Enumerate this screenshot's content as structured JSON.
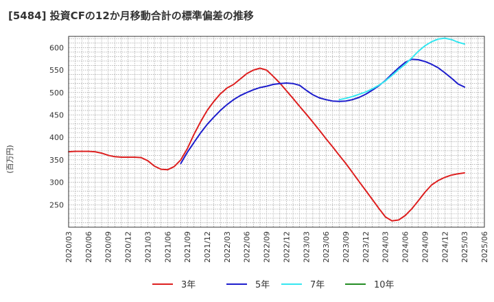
{
  "title": "[5484]  投資CFの12か月移動合計の標準偏差の推移",
  "chart_data": {
    "type": "line",
    "title": "[5484]  投資CFの12か月移動合計の標準偏差の推移",
    "xlabel": "",
    "ylabel": "(百万円)",
    "ylim": [
      200,
      625
    ],
    "yticks": [
      250,
      300,
      350,
      400,
      450,
      500,
      550,
      600
    ],
    "x_range": [
      "2020-03",
      "2025-06"
    ],
    "xticks": [
      "2020/03",
      "2020/06",
      "2020/09",
      "2020/12",
      "2021/03",
      "2021/06",
      "2021/09",
      "2021/12",
      "2022/03",
      "2022/06",
      "2022/09",
      "2022/12",
      "2023/03",
      "2023/06",
      "2023/09",
      "2023/12",
      "2024/03",
      "2024/06",
      "2024/09",
      "2024/12",
      "2025/03",
      "2025/06"
    ],
    "grid": true,
    "legend_position": "bottom",
    "series": [
      {
        "name": "3年",
        "color": "#dd1e1e",
        "points": [
          [
            "2020-03",
            368
          ],
          [
            "2020-04",
            369
          ],
          [
            "2020-05",
            369
          ],
          [
            "2020-06",
            369
          ],
          [
            "2020-07",
            368
          ],
          [
            "2020-08",
            365
          ],
          [
            "2020-09",
            360
          ],
          [
            "2020-10",
            357
          ],
          [
            "2020-11",
            356
          ],
          [
            "2020-12",
            356
          ],
          [
            "2021-01",
            356
          ],
          [
            "2021-02",
            355
          ],
          [
            "2021-03",
            348
          ],
          [
            "2021-04",
            336
          ],
          [
            "2021-05",
            329
          ],
          [
            "2021-06",
            328
          ],
          [
            "2021-07",
            335
          ],
          [
            "2021-08",
            350
          ],
          [
            "2021-09",
            375
          ],
          [
            "2021-10",
            407
          ],
          [
            "2021-11",
            435
          ],
          [
            "2021-12",
            460
          ],
          [
            "2022-01",
            480
          ],
          [
            "2022-02",
            497
          ],
          [
            "2022-03",
            510
          ],
          [
            "2022-04",
            518
          ],
          [
            "2022-05",
            530
          ],
          [
            "2022-06",
            542
          ],
          [
            "2022-07",
            550
          ],
          [
            "2022-08",
            554
          ],
          [
            "2022-09",
            550
          ],
          [
            "2022-10",
            536
          ],
          [
            "2022-11",
            521
          ],
          [
            "2022-12",
            504
          ],
          [
            "2023-01",
            487
          ],
          [
            "2023-02",
            469
          ],
          [
            "2023-03",
            452
          ],
          [
            "2023-04",
            434
          ],
          [
            "2023-05",
            416
          ],
          [
            "2023-06",
            397
          ],
          [
            "2023-07",
            379
          ],
          [
            "2023-08",
            360
          ],
          [
            "2023-09",
            342
          ],
          [
            "2023-10",
            322
          ],
          [
            "2023-11",
            302
          ],
          [
            "2023-12",
            282
          ],
          [
            "2024-01",
            262
          ],
          [
            "2024-02",
            242
          ],
          [
            "2024-03",
            223
          ],
          [
            "2024-04",
            214
          ],
          [
            "2024-05",
            216
          ],
          [
            "2024-06",
            226
          ],
          [
            "2024-07",
            241
          ],
          [
            "2024-08",
            259
          ],
          [
            "2024-09",
            278
          ],
          [
            "2024-10",
            294
          ],
          [
            "2024-11",
            304
          ],
          [
            "2024-12",
            311
          ],
          [
            "2025-01",
            316
          ],
          [
            "2025-02",
            319
          ],
          [
            "2025-03",
            321
          ]
        ]
      },
      {
        "name": "5年",
        "color": "#1c1ccc",
        "points": [
          [
            "2021-08",
            342
          ],
          [
            "2021-09",
            367
          ],
          [
            "2021-10",
            389
          ],
          [
            "2021-11",
            410
          ],
          [
            "2021-12",
            429
          ],
          [
            "2022-01",
            445
          ],
          [
            "2022-02",
            460
          ],
          [
            "2022-03",
            473
          ],
          [
            "2022-04",
            484
          ],
          [
            "2022-05",
            493
          ],
          [
            "2022-06",
            500
          ],
          [
            "2022-07",
            506
          ],
          [
            "2022-08",
            511
          ],
          [
            "2022-09",
            514
          ],
          [
            "2022-10",
            518
          ],
          [
            "2022-11",
            520
          ],
          [
            "2022-12",
            521
          ],
          [
            "2023-01",
            520
          ],
          [
            "2023-02",
            516
          ],
          [
            "2023-03",
            505
          ],
          [
            "2023-04",
            495
          ],
          [
            "2023-05",
            488
          ],
          [
            "2023-06",
            484
          ],
          [
            "2023-07",
            481
          ],
          [
            "2023-08",
            480
          ],
          [
            "2023-09",
            481
          ],
          [
            "2023-10",
            484
          ],
          [
            "2023-11",
            489
          ],
          [
            "2023-12",
            496
          ],
          [
            "2024-01",
            505
          ],
          [
            "2024-02",
            515
          ],
          [
            "2024-03",
            527
          ],
          [
            "2024-04",
            541
          ],
          [
            "2024-05",
            555
          ],
          [
            "2024-06",
            567
          ],
          [
            "2024-07",
            574
          ],
          [
            "2024-08",
            573
          ],
          [
            "2024-09",
            569
          ],
          [
            "2024-10",
            563
          ],
          [
            "2024-11",
            555
          ],
          [
            "2024-12",
            544
          ],
          [
            "2025-01",
            532
          ],
          [
            "2025-02",
            519
          ],
          [
            "2025-03",
            512
          ]
        ]
      },
      {
        "name": "7年",
        "color": "#33e6f0",
        "points": [
          [
            "2023-08",
            484
          ],
          [
            "2023-09",
            487
          ],
          [
            "2023-10",
            491
          ],
          [
            "2023-11",
            496
          ],
          [
            "2023-12",
            501
          ],
          [
            "2024-01",
            508
          ],
          [
            "2024-02",
            516
          ],
          [
            "2024-03",
            526
          ],
          [
            "2024-04",
            538
          ],
          [
            "2024-05",
            551
          ],
          [
            "2024-06",
            563
          ],
          [
            "2024-07",
            577
          ],
          [
            "2024-08",
            592
          ],
          [
            "2024-09",
            604
          ],
          [
            "2024-10",
            613
          ],
          [
            "2024-11",
            619
          ],
          [
            "2024-12",
            621
          ],
          [
            "2025-01",
            618
          ],
          [
            "2025-02",
            612
          ],
          [
            "2025-03",
            608
          ]
        ]
      },
      {
        "name": "10年",
        "color": "#228b22",
        "points": []
      }
    ]
  }
}
